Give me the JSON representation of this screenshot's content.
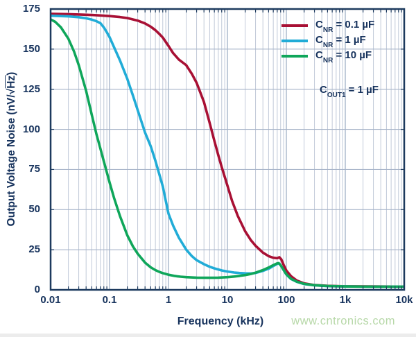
{
  "colors": {
    "text_navy": "#16325c",
    "plot_border": "#1d3a5e",
    "grid_minor": "#c0c9d8",
    "grid_major": "#98a9c2",
    "grid_horizontal": "#a6b3c8",
    "series_red": "#a81034",
    "series_cyan": "#21acd7",
    "series_green": "#0fa65a",
    "watermark_green": "#b7d8a8"
  },
  "chart_data": {
    "type": "line",
    "x_scale": "log",
    "xlim": [
      0.01,
      10000
    ],
    "ylim": [
      0,
      175
    ],
    "grid": "on",
    "legend_position": "top-right-inside",
    "xlabel": "Frequency (kHz)",
    "ylabel": "Output Voltage Noise (nV/√Hz)",
    "ylabel_parts": {
      "pre": "Output Voltage Noise (nV/",
      "sqrt_sign": "√",
      "sqrt_of": "Hz",
      "post": ")"
    },
    "x_ticks": [
      {
        "f": 0.01,
        "label": "0.01"
      },
      {
        "f": 0.1,
        "label": "0.1"
      },
      {
        "f": 1,
        "label": "1"
      },
      {
        "f": 10,
        "label": "10"
      },
      {
        "f": 100,
        "label": "100"
      },
      {
        "f": 1000,
        "label": "1k"
      },
      {
        "f": 10000,
        "label": "10k"
      }
    ],
    "y_ticks": [
      0,
      25,
      50,
      75,
      100,
      125,
      150,
      175
    ],
    "series": [
      {
        "name": "CNR = 0.1 µF",
        "color": "#a81034",
        "points": [
          [
            0.01,
            172
          ],
          [
            0.02,
            171.8
          ],
          [
            0.03,
            171.6
          ],
          [
            0.05,
            171.3
          ],
          [
            0.07,
            171
          ],
          [
            0.1,
            170.6
          ],
          [
            0.15,
            170
          ],
          [
            0.2,
            169.4
          ],
          [
            0.3,
            167.8
          ],
          [
            0.4,
            166
          ],
          [
            0.5,
            164
          ],
          [
            0.6,
            161.8
          ],
          [
            0.7,
            159.5
          ],
          [
            0.8,
            157.2
          ],
          [
            1,
            152
          ],
          [
            1.2,
            147.5
          ],
          [
            1.5,
            143.5
          ],
          [
            2,
            140
          ],
          [
            2.5,
            134.5
          ],
          [
            3,
            129
          ],
          [
            4,
            117
          ],
          [
            5,
            104
          ],
          [
            6,
            93
          ],
          [
            7,
            84
          ],
          [
            8,
            76.5
          ],
          [
            10,
            65
          ],
          [
            12,
            55.5
          ],
          [
            15,
            46
          ],
          [
            20,
            36.5
          ],
          [
            25,
            31
          ],
          [
            30,
            27.5
          ],
          [
            40,
            23.2
          ],
          [
            50,
            21
          ],
          [
            60,
            20
          ],
          [
            70,
            19.7
          ],
          [
            76,
            20.3
          ],
          [
            82,
            19
          ],
          [
            90,
            15.5
          ],
          [
            100,
            12
          ],
          [
            120,
            8.5
          ],
          [
            150,
            5.8
          ],
          [
            200,
            4
          ],
          [
            300,
            3
          ],
          [
            500,
            2.5
          ],
          [
            1000,
            2.2
          ],
          [
            3000,
            2.1
          ],
          [
            10000,
            2
          ]
        ]
      },
      {
        "name": "CNR = 1 µF",
        "color": "#21acd7",
        "points": [
          [
            0.01,
            170.8
          ],
          [
            0.02,
            170.4
          ],
          [
            0.03,
            169.9
          ],
          [
            0.04,
            169.2
          ],
          [
            0.05,
            168.4
          ],
          [
            0.06,
            167.4
          ],
          [
            0.07,
            166.2
          ],
          [
            0.08,
            163.5
          ],
          [
            0.09,
            160.5
          ],
          [
            0.1,
            157.5
          ],
          [
            0.12,
            151
          ],
          [
            0.15,
            143
          ],
          [
            0.2,
            131.5
          ],
          [
            0.25,
            121
          ],
          [
            0.3,
            112
          ],
          [
            0.4,
            98
          ],
          [
            0.5,
            89.5
          ],
          [
            0.6,
            80.5
          ],
          [
            0.7,
            72
          ],
          [
            0.8,
            64.5
          ],
          [
            0.9,
            55.5
          ],
          [
            1,
            47.5
          ],
          [
            1.2,
            40
          ],
          [
            1.5,
            32.5
          ],
          [
            2,
            25
          ],
          [
            2.5,
            21
          ],
          [
            3,
            18.5
          ],
          [
            4,
            16
          ],
          [
            5,
            14.4
          ],
          [
            6,
            13.4
          ],
          [
            7,
            12.7
          ],
          [
            8,
            12.1
          ],
          [
            10,
            11.4
          ],
          [
            13,
            10.8
          ],
          [
            16,
            10.5
          ],
          [
            20,
            10.3
          ],
          [
            25,
            10.2
          ],
          [
            30,
            10.5
          ],
          [
            40,
            11.8
          ],
          [
            50,
            13.2
          ],
          [
            60,
            14.8
          ],
          [
            70,
            16.2
          ],
          [
            74,
            16.6
          ],
          [
            80,
            15.3
          ],
          [
            90,
            12.3
          ],
          [
            100,
            9.6
          ],
          [
            120,
            6.8
          ],
          [
            150,
            5
          ],
          [
            200,
            3.6
          ],
          [
            300,
            2.8
          ],
          [
            500,
            2.3
          ],
          [
            1000,
            2.1
          ],
          [
            3000,
            2
          ],
          [
            10000,
            2
          ]
        ]
      },
      {
        "name": "CNR = 10 µF",
        "color": "#0fa65a",
        "points": [
          [
            0.01,
            168.5
          ],
          [
            0.012,
            167
          ],
          [
            0.015,
            163.5
          ],
          [
            0.02,
            156.5
          ],
          [
            0.025,
            148.5
          ],
          [
            0.03,
            140
          ],
          [
            0.04,
            124
          ],
          [
            0.05,
            109
          ],
          [
            0.06,
            97
          ],
          [
            0.07,
            88
          ],
          [
            0.08,
            80
          ],
          [
            0.1,
            67
          ],
          [
            0.12,
            57
          ],
          [
            0.15,
            46
          ],
          [
            0.2,
            34
          ],
          [
            0.25,
            27
          ],
          [
            0.3,
            22.5
          ],
          [
            0.4,
            17
          ],
          [
            0.5,
            14
          ],
          [
            0.6,
            12.3
          ],
          [
            0.7,
            11.2
          ],
          [
            0.8,
            10.4
          ],
          [
            1,
            9.4
          ],
          [
            1.3,
            8.6
          ],
          [
            1.6,
            8.2
          ],
          [
            2,
            7.9
          ],
          [
            3,
            7.6
          ],
          [
            5,
            7.5
          ],
          [
            7,
            7.6
          ],
          [
            10,
            7.9
          ],
          [
            13,
            8.3
          ],
          [
            16,
            8.7
          ],
          [
            20,
            9.2
          ],
          [
            25,
            9.9
          ],
          [
            30,
            10.7
          ],
          [
            40,
            12.3
          ],
          [
            50,
            13.9
          ],
          [
            60,
            15.4
          ],
          [
            70,
            16.5
          ],
          [
            74,
            16.7
          ],
          [
            80,
            15.4
          ],
          [
            90,
            12.4
          ],
          [
            100,
            9.7
          ],
          [
            120,
            6.9
          ],
          [
            150,
            5.1
          ],
          [
            200,
            3.7
          ],
          [
            300,
            2.9
          ],
          [
            500,
            2.4
          ],
          [
            1000,
            2.1
          ],
          [
            3000,
            2
          ],
          [
            10000,
            2
          ]
        ]
      }
    ]
  },
  "legend": {
    "items": [
      {
        "pre": "C",
        "sub": "NR",
        "rest": " = 0.1 µF",
        "color": "#a81034"
      },
      {
        "pre": "C",
        "sub": "NR",
        "rest": " = 1 µF",
        "color": "#21acd7"
      },
      {
        "pre": "C",
        "sub": "NR",
        "rest": " = 10 µF",
        "color": "#0fa65a"
      }
    ]
  },
  "annotation": {
    "pre": "C",
    "sub": "OUT1",
    "rest": " = 1 µF"
  },
  "watermark": {
    "text": "www.cntronics.com",
    "color": "#b7d8a8"
  }
}
